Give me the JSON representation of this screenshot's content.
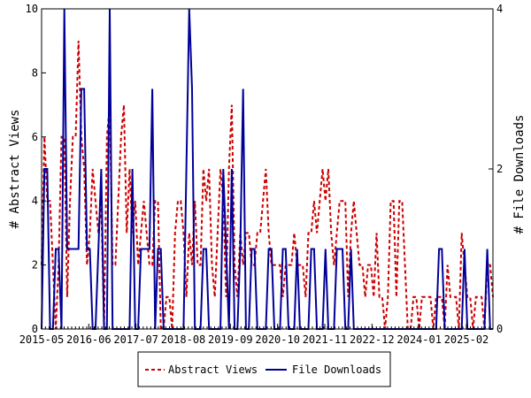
{
  "chart_data": {
    "type": "line",
    "title": "",
    "xlabel": "",
    "ylabel_left": "# Abstract Views",
    "ylabel_right": "# File Downloads",
    "y_left_range": [
      0,
      10
    ],
    "y_right_range": [
      0,
      4
    ],
    "y_left_ticks": [
      "0",
      "2",
      "4",
      "6",
      "8",
      "10"
    ],
    "y_right_ticks": [
      "0",
      "2",
      "4"
    ],
    "x_tick_labels": [
      "2015-05",
      "2016-06",
      "2017-07",
      "2018-08",
      "2019-09",
      "2020-10",
      "2021-11",
      "2022-12",
      "2024-01",
      "2025-02"
    ],
    "grid": false,
    "legend_position": "bottom-center",
    "series": [
      {
        "name": "Abstract Views",
        "axis": "left",
        "color": "#cc0000",
        "style": "dashed",
        "values": [
          2,
          6,
          4,
          4,
          2,
          0,
          2,
          6,
          6,
          1,
          4,
          6,
          6,
          9,
          6,
          5,
          2,
          3,
          5,
          4,
          3,
          4,
          0,
          6,
          7,
          2,
          2,
          4,
          6,
          7,
          3,
          5,
          3,
          4,
          2,
          3,
          4,
          3,
          2,
          2,
          4,
          4,
          0,
          0,
          1,
          1,
          0,
          3,
          4,
          4,
          3,
          1,
          3,
          2,
          4,
          2,
          2,
          5,
          4,
          5,
          2,
          1,
          3,
          5,
          4,
          1,
          5,
          7,
          2,
          1,
          3,
          2,
          3,
          3,
          2,
          2,
          3,
          3,
          4,
          5,
          3,
          2,
          2,
          2,
          2,
          1,
          2,
          2,
          2,
          3,
          2,
          2,
          2,
          1,
          3,
          3,
          4,
          3,
          4,
          5,
          4,
          5,
          3,
          2,
          3,
          4,
          4,
          4,
          1,
          3,
          4,
          3,
          2,
          2,
          1,
          2,
          2,
          1,
          3,
          1,
          1,
          0,
          1,
          4,
          4,
          1,
          4,
          4,
          2,
          0,
          0,
          1,
          1,
          0,
          1,
          1,
          1,
          1,
          0,
          1,
          1,
          1,
          0,
          2,
          1,
          1,
          1,
          0,
          3,
          2,
          1,
          1,
          0,
          1,
          1,
          1,
          0,
          2,
          2,
          1
        ]
      },
      {
        "name": "File Downloads",
        "axis": "right",
        "color": "#000099",
        "style": "solid",
        "values": [
          0,
          2,
          2,
          0,
          0,
          1,
          1,
          0,
          4,
          1,
          1,
          1,
          1,
          1,
          3,
          3,
          1,
          1,
          0,
          0,
          1,
          2,
          0,
          0,
          4,
          0,
          0,
          0,
          0,
          0,
          0,
          0,
          2,
          0,
          0,
          1,
          1,
          1,
          1,
          3,
          0,
          1,
          1,
          0,
          0,
          0,
          0,
          0,
          0,
          0,
          0,
          2,
          4,
          3,
          0,
          0,
          0,
          1,
          1,
          0,
          0,
          0,
          0,
          0,
          2,
          1,
          0,
          2,
          0,
          0,
          1,
          3,
          0,
          0,
          1,
          1,
          0,
          0,
          0,
          0,
          1,
          1,
          0,
          0,
          0,
          1,
          1,
          0,
          0,
          0,
          1,
          0,
          0,
          0,
          0,
          1,
          1,
          0,
          0,
          0,
          1,
          0,
          0,
          0,
          1,
          1,
          1,
          0,
          0,
          1,
          0,
          0,
          0,
          0,
          0,
          0,
          0,
          0,
          0,
          0,
          0,
          0,
          0,
          0,
          0,
          0,
          0,
          0,
          0,
          0,
          0,
          0,
          0,
          0,
          0,
          0,
          0,
          0,
          0,
          0,
          1,
          1,
          0,
          0,
          0,
          0,
          0,
          0,
          0,
          1,
          0,
          0,
          0,
          0,
          0,
          0,
          0,
          1,
          0,
          0
        ]
      }
    ]
  }
}
